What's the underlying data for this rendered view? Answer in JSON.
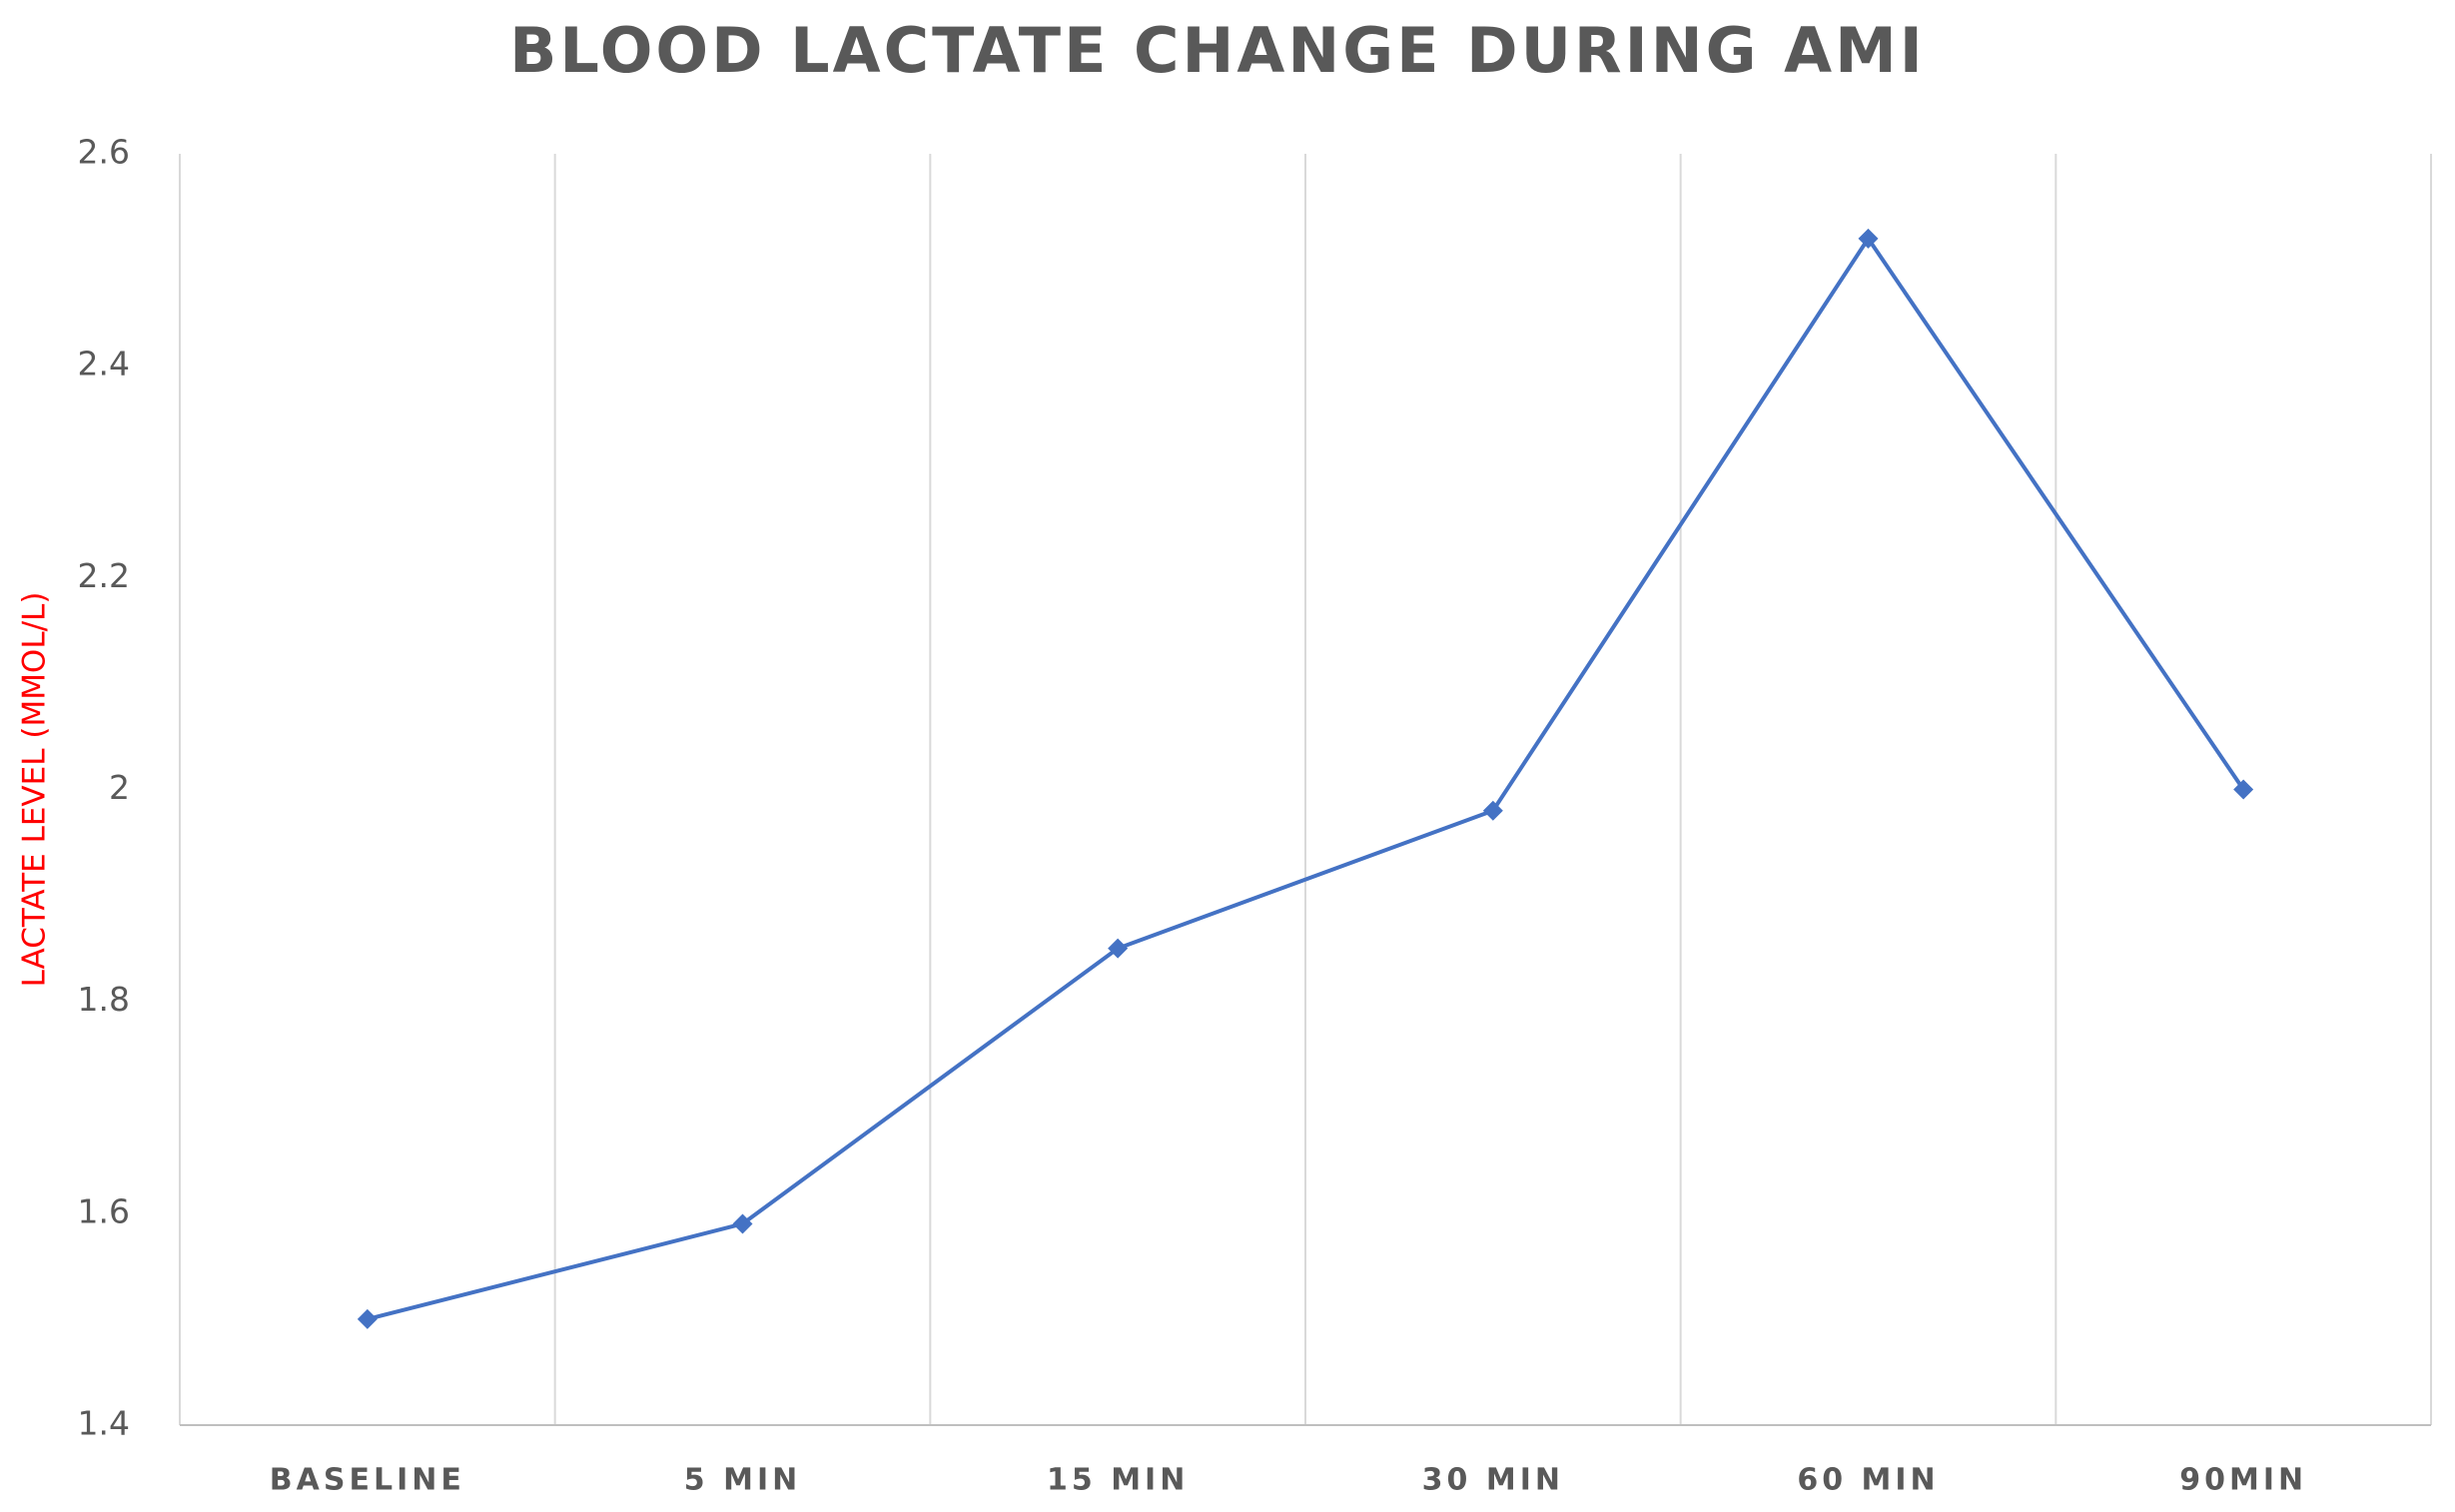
{
  "chart_data": {
    "type": "line",
    "title": "BLOOD LACTATE CHANGE DURING AMI",
    "y_label": "LACTATE LEVEL (MMOL/L)",
    "categories": [
      "BASELINE",
      "5 MIN",
      "15 MIN",
      "30 MIN",
      "60 MIN",
      "90MIN"
    ],
    "series": [
      {
        "name": "Lactate",
        "color": "#4472c4",
        "values": [
          1.5,
          1.59,
          1.85,
          1.98,
          2.52,
          2.0
        ]
      }
    ],
    "ylim": [
      1.4,
      2.6
    ],
    "yticks": [
      1.4,
      1.6,
      1.8,
      2,
      2.2,
      2.4,
      2.6
    ],
    "grid": "vertical",
    "y_label_color": "#ff0000"
  }
}
